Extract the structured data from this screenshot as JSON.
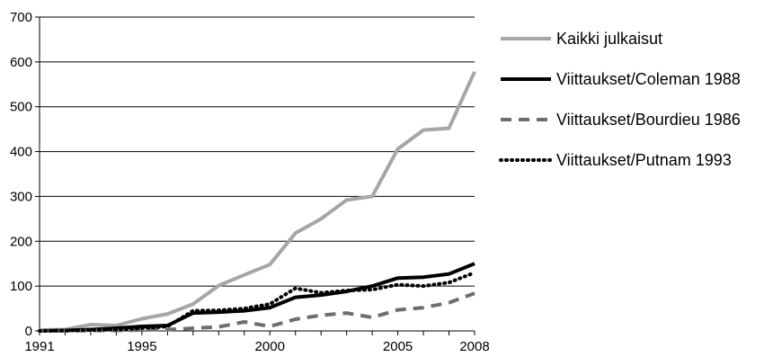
{
  "chart_data": {
    "type": "line",
    "title": "",
    "xlabel": "",
    "ylabel": "",
    "x": [
      1991,
      1992,
      1993,
      1994,
      1995,
      1996,
      1997,
      1998,
      1999,
      2000,
      2001,
      2002,
      2003,
      2004,
      2005,
      2006,
      2007,
      2008
    ],
    "xticks": [
      "1991",
      "1995",
      "2000",
      "2005",
      "2008"
    ],
    "xtick_values": [
      1991,
      1995,
      2000,
      2005,
      2008
    ],
    "yticks": [
      "0",
      "100",
      "200",
      "300",
      "400",
      "500",
      "600",
      "700"
    ],
    "xlim": [
      1991,
      2008
    ],
    "ylim": [
      0,
      700
    ],
    "grid": "horizontal",
    "legend_position": "right",
    "series": [
      {
        "name": "Kaikki julkaisut",
        "color": "#a6a6a6",
        "style": "solid",
        "values": [
          2,
          3,
          14,
          12,
          27,
          38,
          60,
          101,
          125,
          148,
          218,
          250,
          292,
          300,
          406,
          448,
          452,
          578
        ]
      },
      {
        "name": "Viittaukset/Coleman 1988",
        "color": "#000000",
        "style": "solid",
        "values": [
          0,
          1,
          3,
          6,
          10,
          12,
          40,
          42,
          45,
          52,
          75,
          80,
          88,
          100,
          118,
          120,
          127,
          150
        ]
      },
      {
        "name": "Viittaukset/Bourdieu 1986",
        "color": "#6e6e6e",
        "style": "dashed",
        "values": [
          0,
          0,
          1,
          1,
          2,
          3,
          6,
          9,
          20,
          10,
          26,
          35,
          40,
          30,
          47,
          52,
          63,
          84
        ]
      },
      {
        "name": "Viittaukset/Putnam 1993",
        "color": "#000000",
        "style": "dotted",
        "values": [
          0,
          1,
          2,
          3,
          6,
          10,
          45,
          46,
          50,
          60,
          95,
          85,
          90,
          92,
          103,
          100,
          108,
          130
        ]
      }
    ]
  }
}
